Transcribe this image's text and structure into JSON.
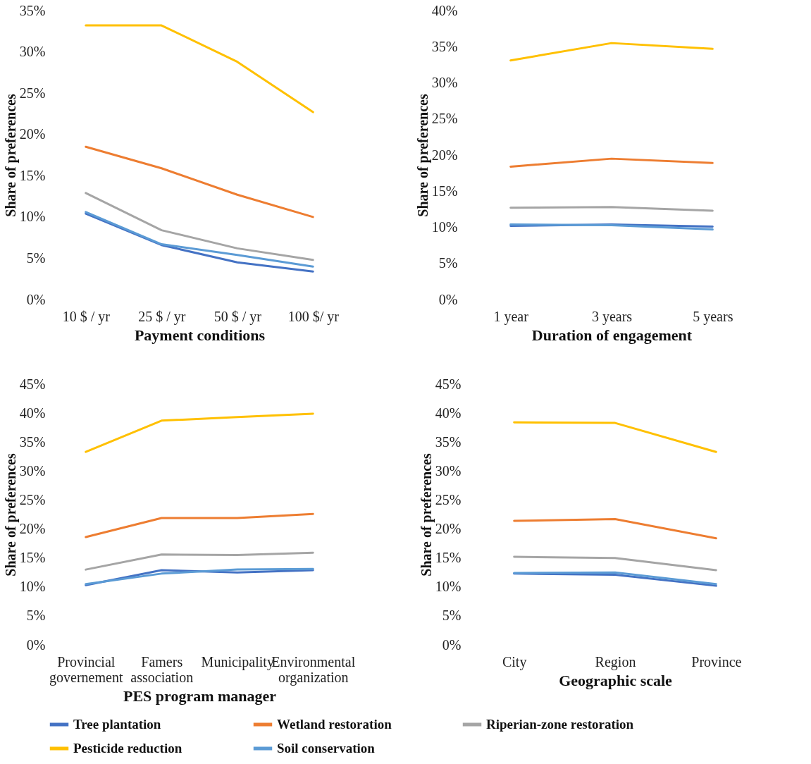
{
  "chart_data": [
    {
      "type": "line",
      "xlabel": "Payment conditions",
      "ylabel": "Share of preferences",
      "categories": [
        "10 $ / yr",
        "25 $ / yr",
        "50 $ / yr",
        "100 $/ yr"
      ],
      "ylim": [
        0,
        35
      ],
      "yticks": [
        {
          "value": 0,
          "label": "0%"
        },
        {
          "value": 5,
          "label": "5%"
        },
        {
          "value": 10,
          "label": "10%"
        },
        {
          "value": 15,
          "label": "15%"
        },
        {
          "value": 20,
          "label": "20%"
        },
        {
          "value": 25,
          "label": "25%"
        },
        {
          "value": 30,
          "label": "30%"
        },
        {
          "value": 35,
          "label": "35%"
        }
      ],
      "grid": false,
      "marker": "none",
      "series": [
        {
          "color": "#4472c4",
          "values": [
            10.4,
            6.6,
            4.5,
            3.4
          ]
        },
        {
          "color": "#ed7d31",
          "values": [
            18.5,
            15.9,
            12.7,
            10.0
          ]
        },
        {
          "color": "#a5a5a5",
          "values": [
            12.9,
            8.4,
            6.2,
            4.8
          ]
        },
        {
          "color": "#ffc000",
          "values": [
            33.2,
            33.2,
            28.8,
            22.7
          ]
        },
        {
          "color": "#5b9bd5",
          "values": [
            10.6,
            6.7,
            5.4,
            4.0
          ]
        }
      ]
    },
    {
      "type": "line",
      "xlabel": "Duration of engagement",
      "ylabel": "Share of preferences",
      "categories": [
        "1 year",
        "3 years",
        "5 years"
      ],
      "ylim": [
        0,
        40
      ],
      "yticks": [
        {
          "value": 0,
          "label": "0%"
        },
        {
          "value": 5,
          "label": "5%"
        },
        {
          "value": 10,
          "label": "10%"
        },
        {
          "value": 15,
          "label": "15%"
        },
        {
          "value": 20,
          "label": "20%"
        },
        {
          "value": 25,
          "label": "25%"
        },
        {
          "value": 30,
          "label": "30%"
        },
        {
          "value": 35,
          "label": "35%"
        },
        {
          "value": 40,
          "label": "40%"
        }
      ],
      "grid": false,
      "marker": "none",
      "series": [
        {
          "color": "#4472c4",
          "values": [
            10.2,
            10.4,
            10.1
          ]
        },
        {
          "color": "#ed7d31",
          "values": [
            18.4,
            19.5,
            18.9
          ]
        },
        {
          "color": "#a5a5a5",
          "values": [
            12.7,
            12.8,
            12.3
          ]
        },
        {
          "color": "#ffc000",
          "values": [
            33.1,
            35.5,
            34.7
          ]
        },
        {
          "color": "#5b9bd5",
          "values": [
            10.4,
            10.3,
            9.7
          ]
        }
      ]
    },
    {
      "type": "line",
      "xlabel": "PES program manager",
      "ylabel": "Share of preferences",
      "categories": [
        "Provincial governement",
        "Famers association",
        "Municipality",
        "Environmental organization"
      ],
      "ylim": [
        0,
        45
      ],
      "yticks": [
        {
          "value": 0,
          "label": "0%"
        },
        {
          "value": 5,
          "label": "5%"
        },
        {
          "value": 10,
          "label": "10%"
        },
        {
          "value": 15,
          "label": "15%"
        },
        {
          "value": 20,
          "label": "20%"
        },
        {
          "value": 25,
          "label": "25%"
        },
        {
          "value": 30,
          "label": "30%"
        },
        {
          "value": 35,
          "label": "35%"
        },
        {
          "value": 40,
          "label": "40%"
        },
        {
          "value": 45,
          "label": "45%"
        }
      ],
      "grid": false,
      "legend": "bottom",
      "marker": "none",
      "series": [
        {
          "name": "Tree plantation",
          "color": "#4472c4",
          "values": [
            10.3,
            12.9,
            12.5,
            12.9
          ]
        },
        {
          "name": "Wetland restoration",
          "color": "#ed7d31",
          "values": [
            18.6,
            21.9,
            21.9,
            22.6
          ]
        },
        {
          "name": "Riperian-zone restoration",
          "color": "#a5a5a5",
          "values": [
            13.0,
            15.6,
            15.5,
            15.9
          ]
        },
        {
          "name": "Pesticide reduction",
          "color": "#ffc000",
          "values": [
            33.3,
            38.7,
            39.3,
            39.9
          ]
        },
        {
          "name": "Soil conservation",
          "color": "#5b9bd5",
          "values": [
            10.5,
            12.3,
            13.0,
            13.1
          ]
        }
      ]
    },
    {
      "type": "line",
      "xlabel": "Geographic scale",
      "ylabel": "Share of preferences",
      "categories": [
        "City",
        "Region",
        "Province"
      ],
      "ylim": [
        0,
        45
      ],
      "yticks": [
        {
          "value": 0,
          "label": "0%"
        },
        {
          "value": 5,
          "label": "5%"
        },
        {
          "value": 10,
          "label": "10%"
        },
        {
          "value": 15,
          "label": "15%"
        },
        {
          "value": 20,
          "label": "20%"
        },
        {
          "value": 25,
          "label": "25%"
        },
        {
          "value": 30,
          "label": "30%"
        },
        {
          "value": 35,
          "label": "35%"
        },
        {
          "value": 40,
          "label": "40%"
        },
        {
          "value": 45,
          "label": "45%"
        }
      ],
      "grid": false,
      "marker": "none",
      "series": [
        {
          "color": "#4472c4",
          "values": [
            12.3,
            12.1,
            10.2
          ]
        },
        {
          "color": "#ed7d31",
          "values": [
            21.4,
            21.7,
            18.4
          ]
        },
        {
          "color": "#a5a5a5",
          "values": [
            15.2,
            15.0,
            12.9
          ]
        },
        {
          "color": "#ffc000",
          "values": [
            38.4,
            38.3,
            33.3
          ]
        },
        {
          "color": "#5b9bd5",
          "values": [
            12.4,
            12.5,
            10.5
          ]
        }
      ]
    }
  ]
}
